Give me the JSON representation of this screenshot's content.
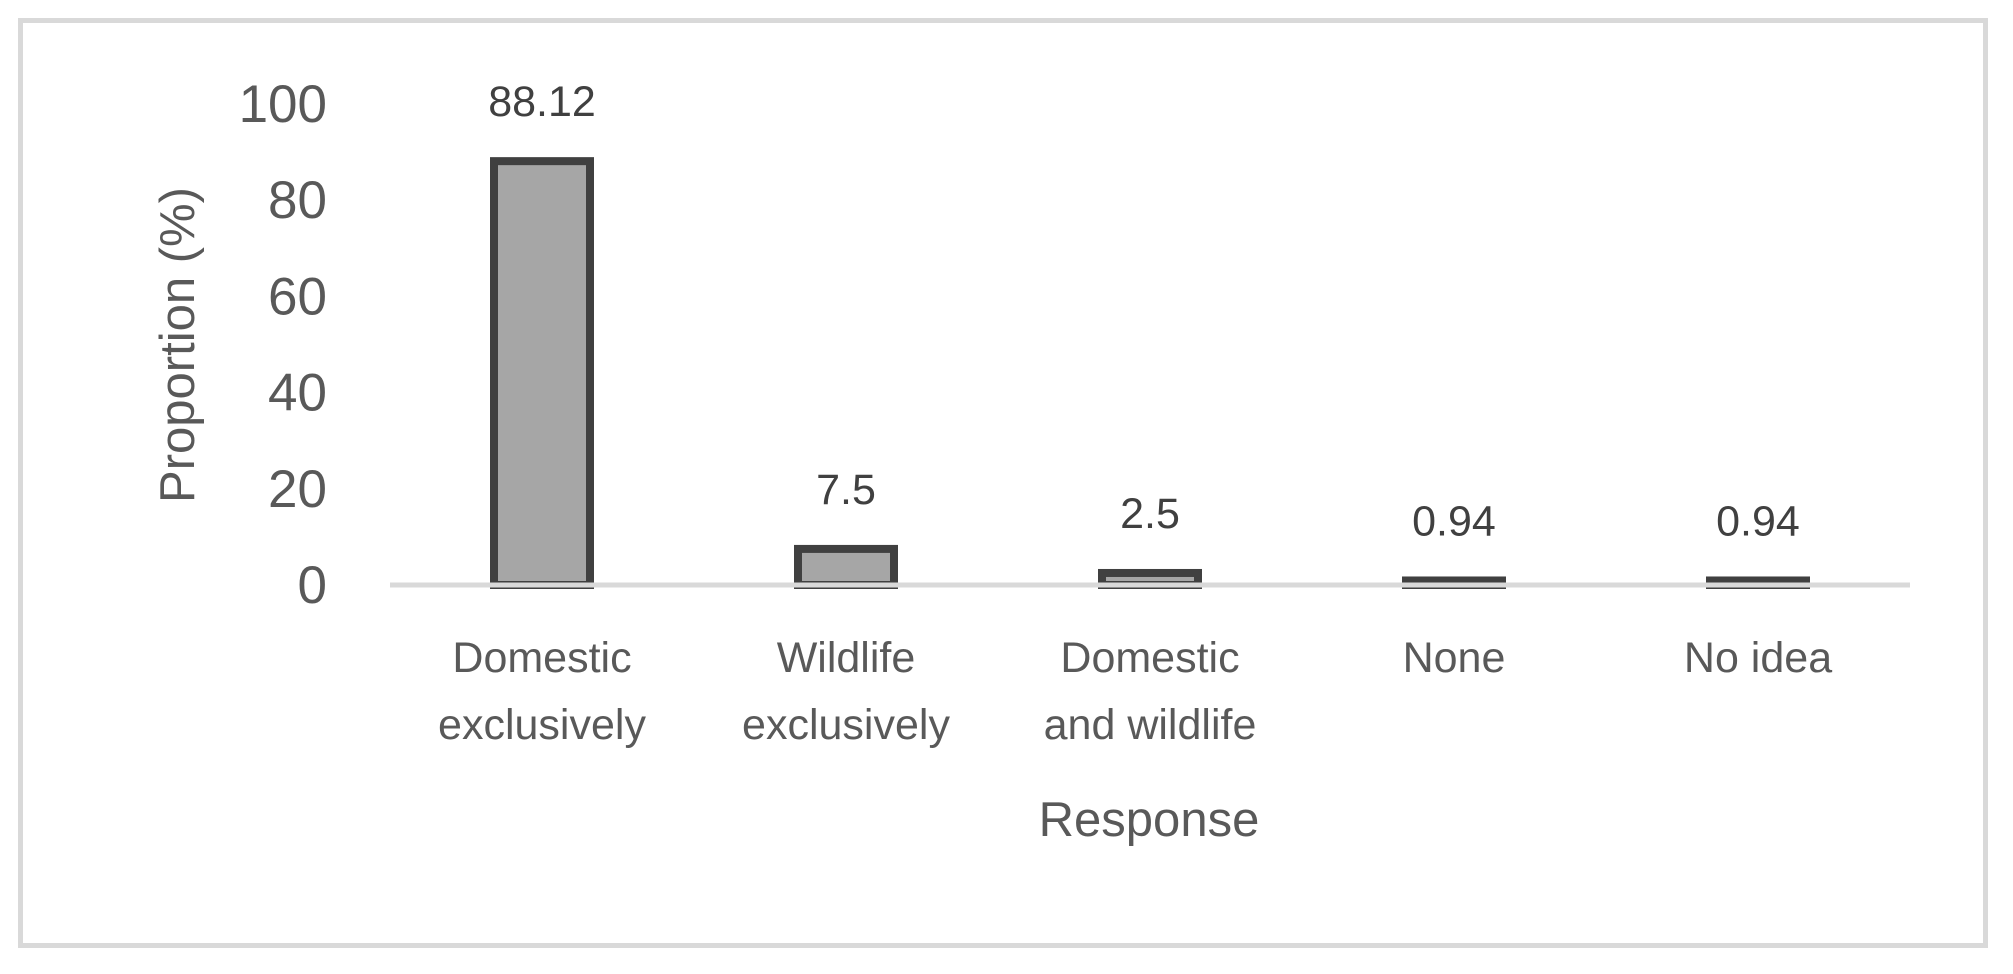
{
  "chart_data": {
    "type": "bar",
    "title": "",
    "xlabel": "Response",
    "ylabel": "Proportion (%)",
    "ylim": [
      0,
      100
    ],
    "yticks": [
      0,
      20,
      40,
      60,
      80,
      100
    ],
    "grid": false,
    "legend": "none",
    "categories": [
      [
        "Domestic",
        "exclusively"
      ],
      [
        "Wildlife",
        "exclusively"
      ],
      [
        "Domestic",
        "and wildlife"
      ],
      [
        "None"
      ],
      [
        "No idea"
      ]
    ],
    "values": [
      88.12,
      7.5,
      2.5,
      0.94,
      0.94
    ],
    "data_labels": [
      "88.12",
      "7.5",
      "2.5",
      "0.94",
      "0.94"
    ],
    "colors": {
      "bar_fill": "#a6a6a6",
      "bar_stroke": "#404040",
      "axis_line": "#d9d9d9",
      "frame": "#d9d9d9",
      "text": "#595959",
      "data_label": "#404040"
    }
  }
}
